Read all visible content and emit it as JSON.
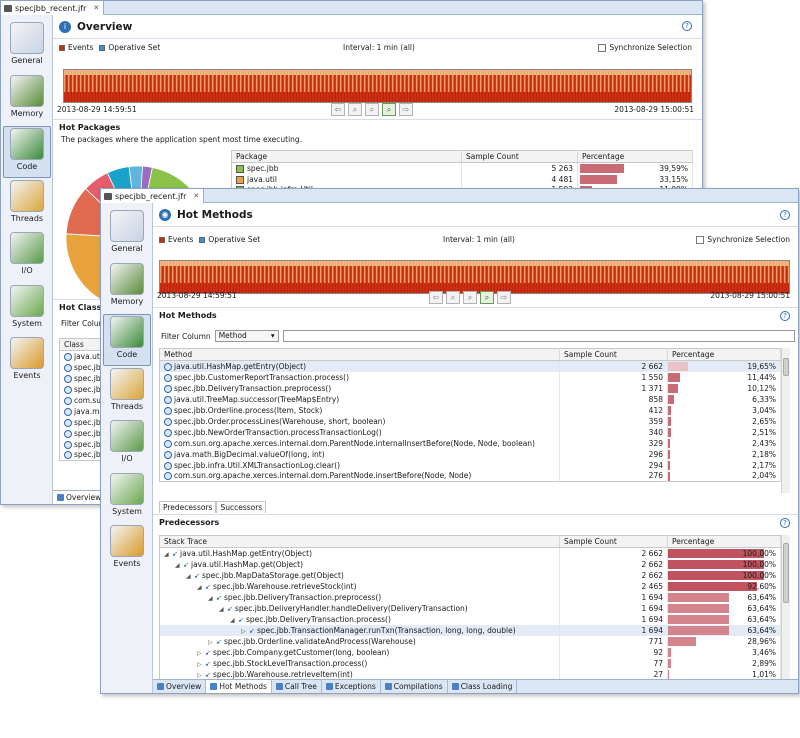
{
  "colors": {
    "accent": "#2e6fb6",
    "bar": "#c96b74",
    "timeline": "#cc2a10"
  },
  "nav": [
    {
      "label": "General",
      "icon": "chart-icon"
    },
    {
      "label": "Memory",
      "icon": "memory-chip-icon"
    },
    {
      "label": "Code",
      "icon": "code-icon"
    },
    {
      "label": "Threads",
      "icon": "threads-icon"
    },
    {
      "label": "I/O",
      "icon": "io-icon"
    },
    {
      "label": "System",
      "icon": "system-icon"
    },
    {
      "label": "Events",
      "icon": "events-icon"
    }
  ],
  "win1": {
    "file_tab": "specjbb_recent.jfr",
    "title": "Overview",
    "legend_events": "Events",
    "legend_operative": "Operative Set",
    "interval": "Interval: 1 min (all)",
    "sync": "Synchronize Selection",
    "time_start": "2013-08-29 14:59:51",
    "time_end": "2013-08-29 15:00:51",
    "hot_packages_title": "Hot Packages",
    "hot_packages_desc": "The packages where the application spent most time executing.",
    "pkg_headers": {
      "package": "Package",
      "count": "Sample Count",
      "pct": "Percentage"
    },
    "packages": [
      {
        "name": "spec.jbb",
        "count": "5 263",
        "pct": "39,59%",
        "value": 39.59,
        "color": "#8bc34a"
      },
      {
        "name": "java.util",
        "count": "4 481",
        "pct": "33,15%",
        "value": 33.15,
        "color": "#e8a33c"
      },
      {
        "name": "spec.jbb.infra.Util",
        "count": "1 502",
        "pct": "11,09%",
        "value": 11.09,
        "color": "#8bc34a"
      }
    ],
    "hot_classes_title": "Hot Classes",
    "filter_label": "Filter Colum",
    "class_header": "Class",
    "classes": [
      "java.util",
      "spec.jbb",
      "spec.jbb",
      "spec.jbb",
      "com.su",
      "java.ma",
      "spec.jbb",
      "spec.jbb",
      "spec.jbb",
      "spec.jbb"
    ],
    "overview_tab": "Overview"
  },
  "win2": {
    "file_tab": "specjbb_recent.jfr",
    "title": "Hot Methods",
    "legend_events": "Events",
    "legend_operative": "Operative Set",
    "interval": "Interval: 1 min (all)",
    "sync": "Synchronize Selection",
    "time_start": "2013-08-29 14:59:51",
    "time_end": "2013-08-29 15:00:51",
    "hot_methods_title": "Hot Methods",
    "filter_label": "Filter Column",
    "filter_value": "Method",
    "method_headers": {
      "method": "Method",
      "count": "Sample Count",
      "pct": "Percentage"
    },
    "methods": [
      {
        "name": "java.util.HashMap.getEntry(Object)",
        "count": "2 662",
        "pct": "19,65%",
        "value": 19.65
      },
      {
        "name": "spec.jbb.CustomerReportTransaction.process()",
        "count": "1 550",
        "pct": "11,44%",
        "value": 11.44
      },
      {
        "name": "spec.jbb.DeliveryTransaction.preprocess()",
        "count": "1 371",
        "pct": "10,12%",
        "value": 10.12
      },
      {
        "name": "java.util.TreeMap.successor(TreeMap$Entry)",
        "count": "858",
        "pct": "6,33%",
        "value": 6.33
      },
      {
        "name": "spec.jbb.Orderline.process(Item, Stock)",
        "count": "412",
        "pct": "3,04%",
        "value": 3.04
      },
      {
        "name": "spec.jbb.Order.processLines(Warehouse, short, boolean)",
        "count": "359",
        "pct": "2,65%",
        "value": 2.65
      },
      {
        "name": "spec.jbb.NewOrderTransaction.processTransactionLog()",
        "count": "340",
        "pct": "2,51%",
        "value": 2.51
      },
      {
        "name": "com.sun.org.apache.xerces.internal.dom.ParentNode.internalInsertBefore(Node, Node, boolean)",
        "count": "329",
        "pct": "2,43%",
        "value": 2.43
      },
      {
        "name": "java.math.BigDecimal.valueOf(long, int)",
        "count": "296",
        "pct": "2,18%",
        "value": 2.18
      },
      {
        "name": "spec.jbb.infra.Util.XMLTransactionLog.clear()",
        "count": "294",
        "pct": "2,17%",
        "value": 2.17
      },
      {
        "name": "com.sun.org.apache.xerces.internal.dom.ParentNode.insertBefore(Node, Node)",
        "count": "276",
        "pct": "2,04%",
        "value": 2.04
      }
    ],
    "subtab_pred": "Predecessors",
    "subtab_succ": "Successors",
    "pred_title": "Predecessors",
    "stack_headers": {
      "trace": "Stack Trace",
      "count": "Sample Count",
      "pct": "Percentage"
    },
    "stack": [
      {
        "depth": 0,
        "name": "java.util.HashMap.getEntry(Object)",
        "count": "2 662",
        "pct": "100,00%",
        "value": 100,
        "open": "◢"
      },
      {
        "depth": 1,
        "name": "java.util.HashMap.get(Object)",
        "count": "2 662",
        "pct": "100,00%",
        "value": 100,
        "open": "◢"
      },
      {
        "depth": 2,
        "name": "spec.jbb.MapDataStorage.get(Object)",
        "count": "2 662",
        "pct": "100,00%",
        "value": 100,
        "open": "◢"
      },
      {
        "depth": 3,
        "name": "spec.jbb.Warehouse.retrieveStock(int)",
        "count": "2 465",
        "pct": "92,60%",
        "value": 92.6,
        "open": "◢"
      },
      {
        "depth": 4,
        "name": "spec.jbb.DeliveryTransaction.preprocess()",
        "count": "1 694",
        "pct": "63,64%",
        "value": 63.64,
        "open": "◢"
      },
      {
        "depth": 5,
        "name": "spec.jbb.DeliveryHandler.handleDelivery(DeliveryTransaction)",
        "count": "1 694",
        "pct": "63,64%",
        "value": 63.64,
        "open": "◢"
      },
      {
        "depth": 6,
        "name": "spec.jbb.DeliveryTransaction.process()",
        "count": "1 694",
        "pct": "63,64%",
        "value": 63.64,
        "open": "◢"
      },
      {
        "depth": 7,
        "name": "spec.jbb.TransactionManager.runTxn(Transaction, long, long, double)",
        "count": "1 694",
        "pct": "63,64%",
        "value": 63.64,
        "open": "▷"
      },
      {
        "depth": 4,
        "name": "spec.jbb.Orderline.validateAndProcess(Warehouse)",
        "count": "771",
        "pct": "28,96%",
        "value": 28.96,
        "open": "▷"
      },
      {
        "depth": 3,
        "name": "spec.jbb.Company.getCustomer(long, boolean)",
        "count": "92",
        "pct": "3,46%",
        "value": 3.46,
        "open": "▷"
      },
      {
        "depth": 3,
        "name": "spec.jbb.StockLevelTransaction.process()",
        "count": "77",
        "pct": "2,89%",
        "value": 2.89,
        "open": "▷"
      },
      {
        "depth": 3,
        "name": "spec.jbb.Warehouse.retrieveItem(int)",
        "count": "27",
        "pct": "1,01%",
        "value": 1.01,
        "open": "▷"
      }
    ],
    "bottom_tabs": [
      "Overview",
      "Hot Methods",
      "Call Tree",
      "Exceptions",
      "Compilations",
      "Class Loading"
    ]
  }
}
